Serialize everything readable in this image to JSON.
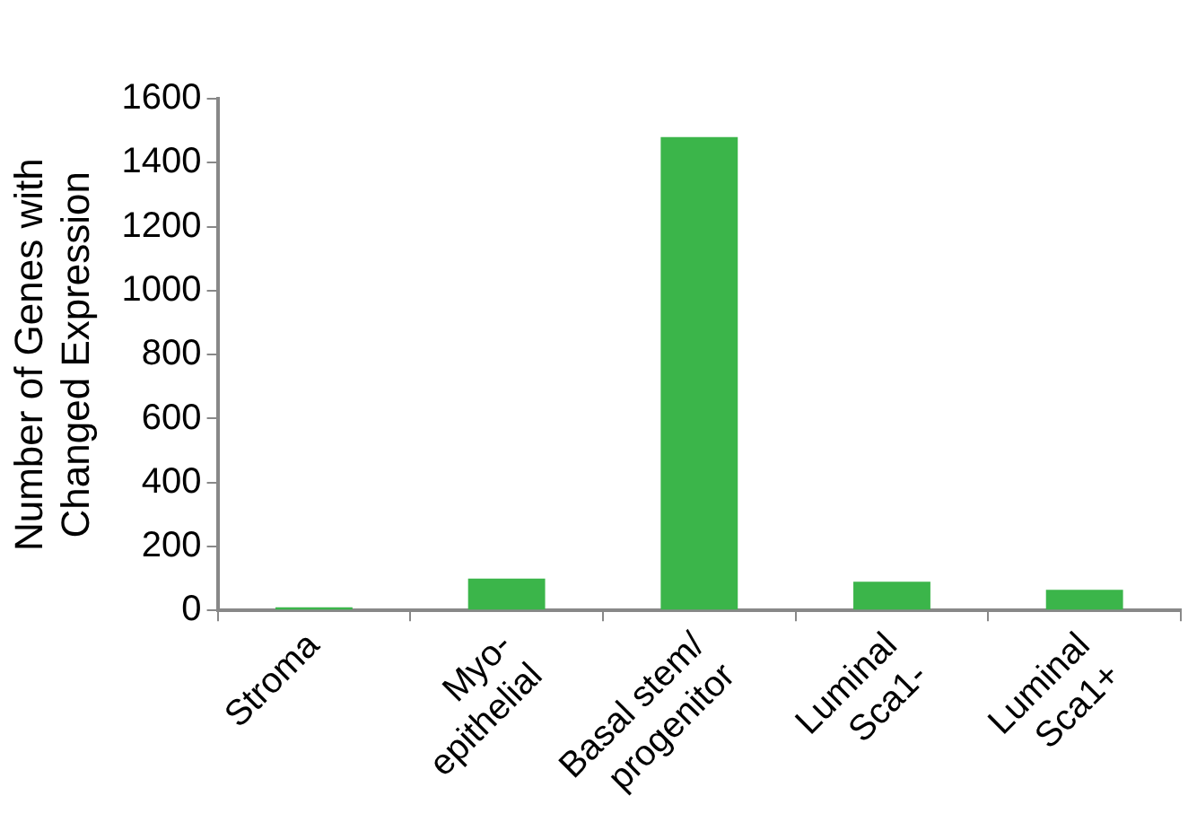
{
  "chart_data": {
    "type": "bar",
    "ylabel": "Number of Genes with\nChanged Expression",
    "categories": [
      "Stroma",
      "Myo-\nepithelial",
      "Basal stem/\nprogenitor",
      "Luminal\nSca1-",
      "Luminal\nSca1+"
    ],
    "values": [
      10,
      100,
      1480,
      90,
      65
    ],
    "color": "#3bb54a",
    "ylim": [
      0,
      1600
    ],
    "yticks": [
      0,
      200,
      400,
      600,
      800,
      1000,
      1200,
      1400,
      1600
    ],
    "grid": false,
    "legend": false
  }
}
